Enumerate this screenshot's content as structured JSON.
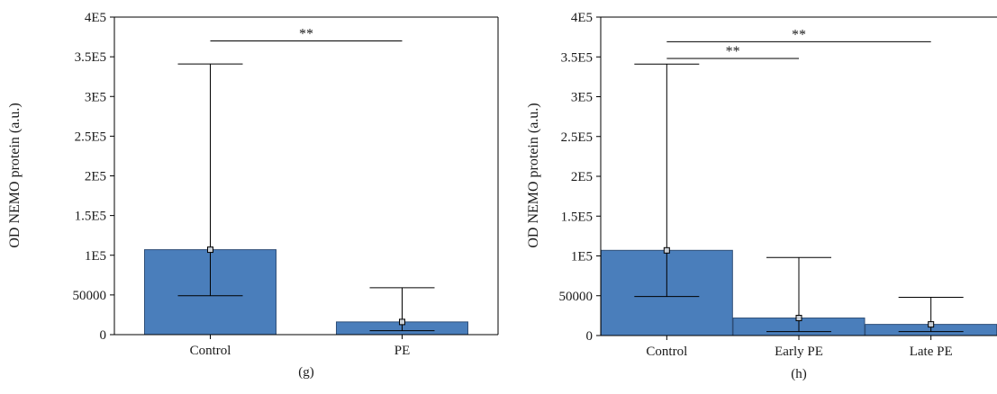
{
  "chart_data": [
    {
      "type": "bar",
      "panel_label": "(g)",
      "ylabel": "OD NEMO protein (a.u.)",
      "ylim": [
        0,
        400000
      ],
      "yticks": [
        {
          "value": 0,
          "label": "0"
        },
        {
          "value": 50000,
          "label": "50000"
        },
        {
          "value": 100000,
          "label": "1E5"
        },
        {
          "value": 150000,
          "label": "1.5E5"
        },
        {
          "value": 200000,
          "label": "2E5"
        },
        {
          "value": 250000,
          "label": "2.5E5"
        },
        {
          "value": 300000,
          "label": "3E5"
        },
        {
          "value": 350000,
          "label": "3.5E5"
        },
        {
          "value": 400000,
          "label": "4E5"
        }
      ],
      "categories": [
        "Control",
        "PE"
      ],
      "values": [
        107000,
        16000
      ],
      "medians": [
        107000,
        16000
      ],
      "error_low": [
        49000,
        5000
      ],
      "error_high": [
        341000,
        59000
      ],
      "bar_color": "#4a7ebb",
      "significance": [
        {
          "from": 0,
          "to": 1,
          "label": "**",
          "y": 370000
        }
      ]
    },
    {
      "type": "bar",
      "panel_label": "(h)",
      "ylabel": "OD NEMO protein (a.u.)",
      "ylim": [
        0,
        400000
      ],
      "yticks": [
        {
          "value": 0,
          "label": "0"
        },
        {
          "value": 50000,
          "label": "50000"
        },
        {
          "value": 100000,
          "label": "1E5"
        },
        {
          "value": 150000,
          "label": "1.5E5"
        },
        {
          "value": 200000,
          "label": "2E5"
        },
        {
          "value": 250000,
          "label": "2.5E5"
        },
        {
          "value": 300000,
          "label": "3E5"
        },
        {
          "value": 350000,
          "label": "3.5E5"
        },
        {
          "value": 400000,
          "label": "4E5"
        }
      ],
      "categories": [
        "Control",
        "Early PE",
        "Late PE"
      ],
      "values": [
        107000,
        22000,
        14000
      ],
      "medians": [
        107000,
        22000,
        14000
      ],
      "error_low": [
        49000,
        5000,
        5000
      ],
      "error_high": [
        341000,
        98000,
        48000
      ],
      "bar_color": "#4a7ebb",
      "significance": [
        {
          "from": 0,
          "to": 1,
          "label": "**",
          "y": 348000
        },
        {
          "from": 0,
          "to": 2,
          "label": "**",
          "y": 369000
        }
      ]
    }
  ]
}
